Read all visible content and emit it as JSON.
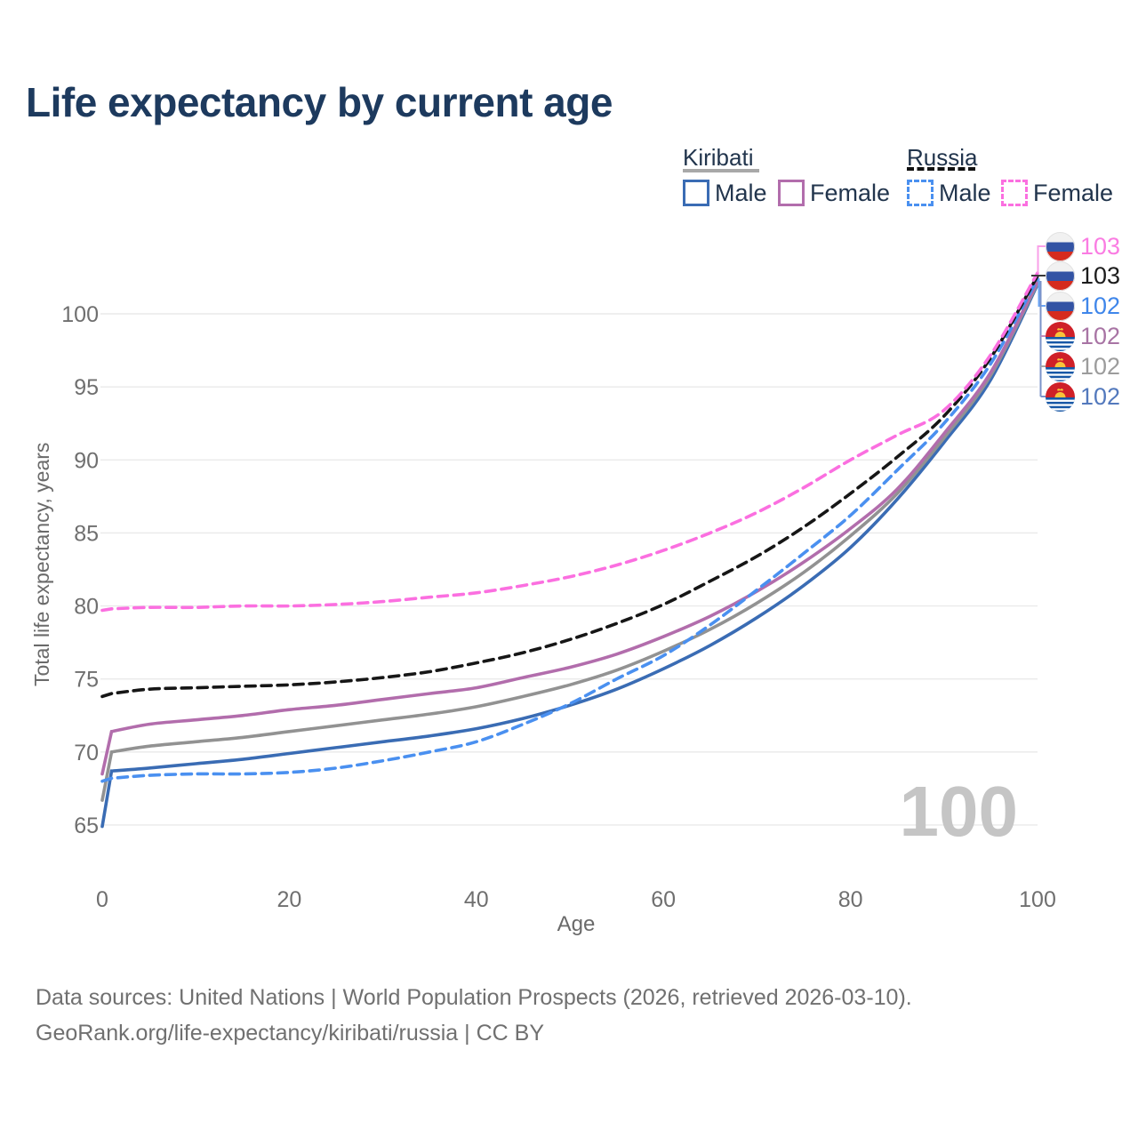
{
  "title": "Life expectancy by current age",
  "legend": {
    "groups": [
      {
        "name": "Kiribati",
        "line_style": "solid",
        "underline_color": "#a8a8a8",
        "items": [
          {
            "label": "Male",
            "color": "#3a6cb4"
          },
          {
            "label": "Female",
            "color": "#b26dac"
          }
        ]
      },
      {
        "name": "Russia",
        "line_style": "dashed",
        "underline_color": "#111111",
        "items": [
          {
            "label": "Male",
            "color": "#4a90f0"
          },
          {
            "label": "Female",
            "color": "#fb6fe0"
          }
        ]
      }
    ]
  },
  "axes": {
    "y_title": "Total life expectancy, years",
    "x_title": "Age",
    "y_ticks": [
      65,
      70,
      75,
      80,
      85,
      90,
      95,
      100
    ],
    "x_ticks": [
      0,
      20,
      40,
      60,
      80,
      100
    ]
  },
  "watermark": "100",
  "endpoint_labels": [
    {
      "value": "103",
      "color": "#fa7ce2",
      "flag": "russia",
      "series": "Russia Female"
    },
    {
      "value": "103",
      "color": "#1c1c1c",
      "flag": "russia",
      "series": "Russia Both sexes"
    },
    {
      "value": "102",
      "color": "#3f86ea",
      "flag": "russia",
      "series": "Russia Male"
    },
    {
      "value": "102",
      "color": "#a874a4",
      "flag": "kiribati",
      "series": "Kiribati Female"
    },
    {
      "value": "102",
      "color": "#9c9c9c",
      "flag": "kiribati",
      "series": "Kiribati Both sexes"
    },
    {
      "value": "102",
      "color": "#5379bd",
      "flag": "kiribati",
      "series": "Kiribati Male"
    }
  ],
  "footer": {
    "line1": "Data sources: United Nations | World Population Prospects (2026, retrieved 2026-03-10).",
    "line2": "GeoRank.org/life-expectancy/kiribati/russia | CC BY"
  },
  "chart_data": {
    "type": "line",
    "title": "Life expectancy by current age",
    "xlabel": "Age",
    "ylabel": "Total life expectancy, years",
    "x_range": [
      0,
      100
    ],
    "ylim": [
      63,
      104.5
    ],
    "grid": "horizontal",
    "legend_position": "top-right",
    "x": [
      0,
      1,
      5,
      10,
      15,
      20,
      25,
      30,
      35,
      40,
      45,
      50,
      55,
      60,
      65,
      70,
      75,
      80,
      85,
      90,
      95,
      100
    ],
    "series": [
      {
        "name": "Kiribati Male",
        "country": "Kiribati",
        "sex": "male",
        "dash": false,
        "color": "#3a6cb4",
        "values": [
          64.9,
          68.7,
          68.9,
          69.2,
          69.5,
          69.9,
          70.3,
          70.7,
          71.1,
          71.6,
          72.3,
          73.2,
          74.3,
          75.7,
          77.3,
          79.2,
          81.4,
          84.0,
          87.3,
          91.2,
          95.5,
          102.0
        ]
      },
      {
        "name": "Kiribati Both sexes",
        "country": "Kiribati",
        "sex": "both",
        "dash": false,
        "color": "#929292",
        "values": [
          66.7,
          70.0,
          70.4,
          70.7,
          71.0,
          71.4,
          71.8,
          72.2,
          72.6,
          73.1,
          73.8,
          74.6,
          75.6,
          76.9,
          78.4,
          80.2,
          82.3,
          84.8,
          87.7,
          91.5,
          95.8,
          102.1
        ]
      },
      {
        "name": "Kiribati Female",
        "country": "Kiribati",
        "sex": "female",
        "dash": false,
        "color": "#b26dac",
        "values": [
          68.5,
          71.4,
          71.9,
          72.2,
          72.5,
          72.9,
          73.2,
          73.6,
          74.0,
          74.4,
          75.1,
          75.8,
          76.7,
          77.9,
          79.3,
          81.0,
          83.0,
          85.3,
          88.0,
          91.8,
          96.0,
          102.2
        ]
      },
      {
        "name": "Russia Male",
        "country": "Russia",
        "sex": "male",
        "dash": true,
        "color": "#4a90f0",
        "values": [
          68.0,
          68.2,
          68.4,
          68.5,
          68.5,
          68.6,
          68.9,
          69.4,
          70.0,
          70.7,
          71.9,
          73.3,
          75.0,
          76.6,
          78.7,
          81.1,
          83.6,
          86.2,
          89.3,
          92.5,
          96.6,
          102.4
        ]
      },
      {
        "name": "Russia Both sexes",
        "country": "Russia",
        "sex": "both",
        "dash": true,
        "color": "#161616",
        "values": [
          73.8,
          74.0,
          74.3,
          74.4,
          74.5,
          74.6,
          74.8,
          75.1,
          75.5,
          76.1,
          76.8,
          77.7,
          78.8,
          80.1,
          81.7,
          83.4,
          85.4,
          87.7,
          90.2,
          93.0,
          97.0,
          102.6
        ]
      },
      {
        "name": "Russia Female",
        "country": "Russia",
        "sex": "female",
        "dash": true,
        "color": "#fb6fe0",
        "values": [
          79.7,
          79.8,
          79.9,
          79.9,
          80.0,
          80.0,
          80.1,
          80.3,
          80.6,
          80.9,
          81.4,
          82.0,
          82.8,
          83.8,
          85.0,
          86.4,
          88.1,
          90.0,
          91.7,
          93.4,
          97.2,
          102.8
        ]
      }
    ]
  }
}
